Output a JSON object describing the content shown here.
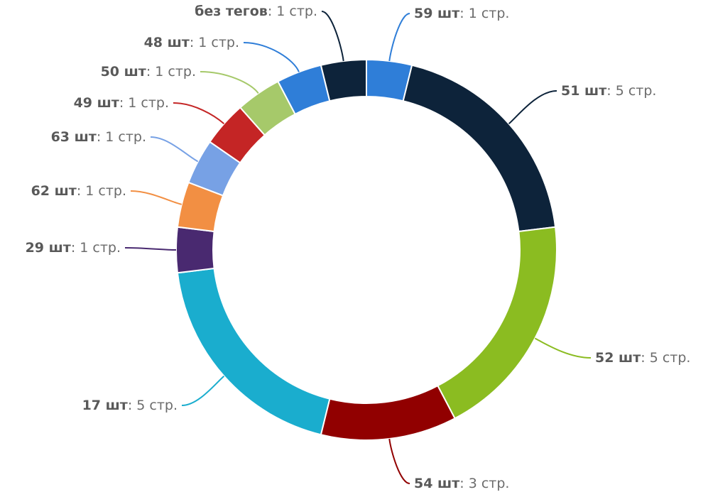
{
  "chart_data": {
    "type": "donut",
    "title": "",
    "value_suffix": " стр.",
    "slices": [
      {
        "name": "59 шт",
        "value": 1,
        "color": "#2f7ed8"
      },
      {
        "name": "51 шт",
        "value": 5,
        "color": "#0d233a"
      },
      {
        "name": "52 шт",
        "value": 5,
        "color": "#8bbc21"
      },
      {
        "name": "54 шт",
        "value": 3,
        "color": "#910000"
      },
      {
        "name": "17 шт",
        "value": 5,
        "color": "#1aadce"
      },
      {
        "name": "29 шт",
        "value": 1,
        "color": "#492970"
      },
      {
        "name": "62 шт",
        "value": 1,
        "color": "#f28f43"
      },
      {
        "name": "63 шт",
        "value": 1,
        "color": "#77a1e5"
      },
      {
        "name": "49 шт",
        "value": 1,
        "color": "#c42525"
      },
      {
        "name": "50 шт",
        "value": 1,
        "color": "#a6c96a"
      },
      {
        "name": "48 шт",
        "value": 1,
        "color": "#2f7ed8"
      },
      {
        "name": "без тегов",
        "value": 1,
        "color": "#0d233a"
      }
    ]
  }
}
